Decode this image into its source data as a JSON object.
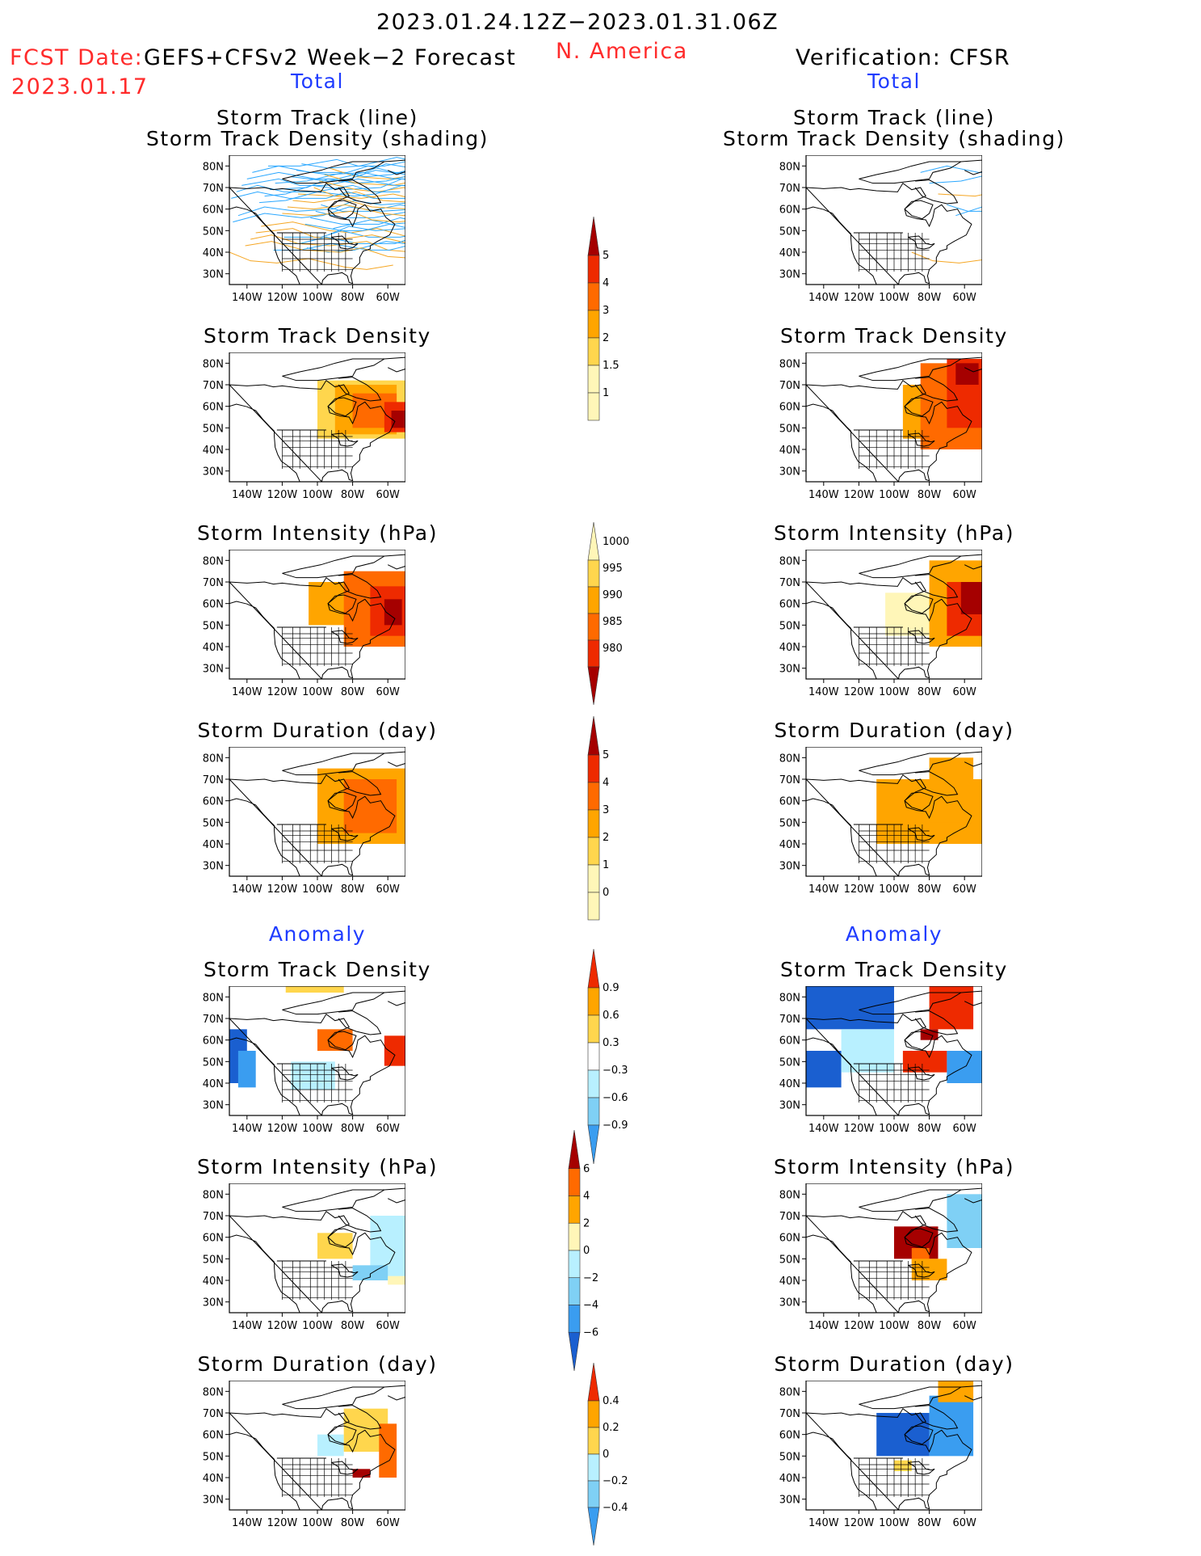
{
  "header": {
    "period": "2023.01.24.12Z−2023.01.31.06Z",
    "fcst_label": "FCST Date:",
    "model": "GEFS+CFSv2 Week−2 Forecast",
    "fcst_date": "2023.01.17",
    "region": "N. America",
    "verification": "Verification: CFSR"
  },
  "sections": {
    "total": "Total",
    "anomaly": "Anomaly"
  },
  "panel_titles": {
    "track_line": "Storm Track (line)",
    "track_shading": "Storm Track Density (shading)",
    "density": "Storm Track Density",
    "intensity": "Storm Intensity (hPa)",
    "duration": "Storm Duration (day)"
  },
  "axes": {
    "lat_ticks": [
      "80N",
      "70N",
      "60N",
      "50N",
      "40N",
      "30N"
    ],
    "lon_ticks": [
      "140W",
      "120W",
      "100W",
      "80W",
      "60W"
    ]
  },
  "colorbars": {
    "density_total": [
      "5",
      "4",
      "3",
      "2",
      "1.5",
      "1"
    ],
    "intensity_total": [
      "1000",
      "995",
      "990",
      "985",
      "980"
    ],
    "duration_total": [
      "5",
      "4",
      "3",
      "2",
      "1",
      "0"
    ],
    "density_anom": [
      "0.9",
      "0.6",
      "0.3",
      "−0.3",
      "−0.6",
      "−0.9"
    ],
    "intensity_anom": [
      "6",
      "4",
      "2",
      "0",
      "−2",
      "−4",
      "−6"
    ],
    "duration_anom": [
      "0.4",
      "0.2",
      "0",
      "−0.2",
      "−0.4"
    ]
  },
  "colors": {
    "title_red": "#ff2b2b",
    "section_blue": "#1f3cff",
    "storm_line": "#2aa7ff",
    "pos_scale": [
      "#fff6b8",
      "#ffd64d",
      "#ffa500",
      "#ff6a00",
      "#ee2a00",
      "#a50000"
    ],
    "neg_scale": [
      "#b8f0ff",
      "#7fd0f5",
      "#3a9df0",
      "#1a5fd0"
    ]
  }
}
